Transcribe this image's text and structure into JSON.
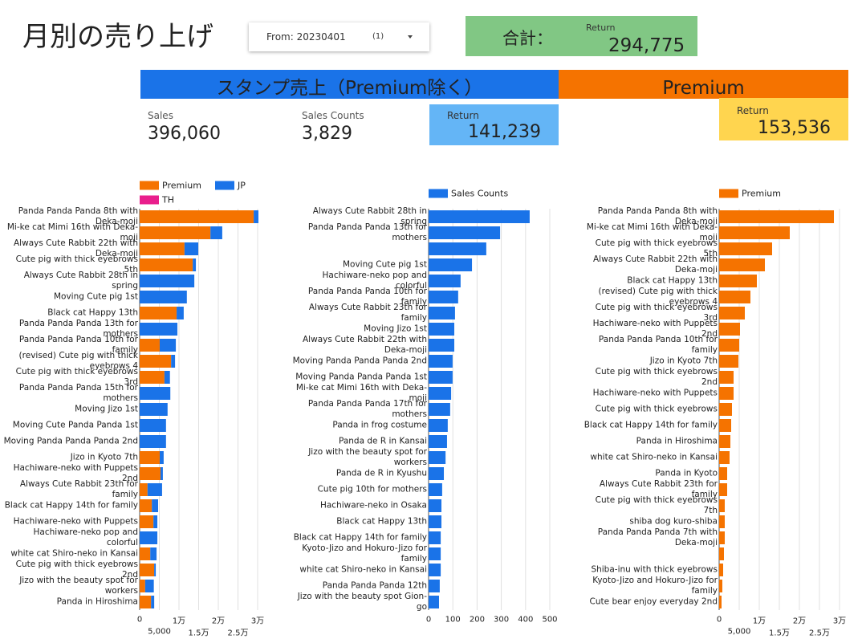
{
  "header": {
    "title": "月別の売り上げ",
    "filter": {
      "label": "From: 20230401",
      "count": "(1)"
    },
    "total": {
      "label": "合計：",
      "sub": "Return",
      "value": "294,775"
    }
  },
  "sections": [
    {
      "title": "スタンプ売上（Premium除く）"
    },
    {
      "title": "Premium"
    }
  ],
  "kpis": [
    {
      "label": "Sales",
      "value": "396,060"
    },
    {
      "label": "Sales Counts",
      "value": "3,829"
    },
    {
      "label": "Return",
      "value": "141,239"
    }
  ],
  "premium_kpi": {
    "label": "Return",
    "value": "153,536"
  },
  "chart_data": [
    {
      "type": "bar",
      "stacked": true,
      "grid": true,
      "categories": [
        "Panda Panda Panda 8th with Deka-moji",
        "Mi-ke cat Mimi 16th with Deka-moji",
        "Always Cute Rabbit 22th with Deka-moji",
        "Cute pig with thick eyebrows 5th",
        "Always Cute Rabbit 28th in spring",
        "Moving Cute pig 1st",
        "Black cat Happy 13th",
        "Panda Panda Panda 13th for mothers",
        "Panda Panda Panda 10th for family",
        "(revised) Cute pig with thick eyebrows 4",
        "Cute pig with thick eyebrows 3rd",
        "Panda Panda Panda 15th for mothers",
        "Moving Jizo 1st",
        "Moving Cute Panda Panda 1st",
        "Moving Panda Panda Panda 2nd",
        "Jizo in Kyoto 7th",
        "Hachiware-neko with Puppets 2nd",
        "Always Cute Rabbit 23th for family",
        "Black cat Happy 14th for family",
        "Hachiware-neko with Puppets",
        "Hachiware-neko pop and colorful",
        "white cat Shiro-neko in Kansai",
        "Cute pig with thick eyebrows 2nd",
        "Jizo with the beauty spot for workers",
        "Panda in Hiroshima"
      ],
      "series": [
        {
          "name": "Premium",
          "color": "#f57300",
          "values": [
            29000,
            18000,
            11400,
            13500,
            0,
            0,
            9400,
            0,
            5100,
            8000,
            6300,
            0,
            0,
            0,
            0,
            5100,
            5300,
            2000,
            3100,
            3500,
            0,
            2700,
            3700,
            1400,
            2900
          ]
        },
        {
          "name": "JP",
          "color": "#1a73e8",
          "values": [
            1200,
            3000,
            3500,
            800,
            13900,
            12000,
            1800,
            9600,
            4100,
            1000,
            1400,
            7800,
            7100,
            6700,
            6700,
            1000,
            600,
            3700,
            1600,
            1000,
            4500,
            1600,
            400,
            2200,
            800
          ]
        },
        {
          "name": "TH",
          "color": "#e91e8c",
          "values": [
            0,
            0,
            0,
            0,
            0,
            0,
            0,
            0,
            0,
            0,
            0,
            0,
            0,
            0,
            0,
            0,
            0,
            0,
            0,
            0,
            0,
            0,
            0,
            0,
            0
          ]
        }
      ],
      "xlim": [
        0,
        30000
      ],
      "xticks": [
        0,
        {
          "value": 5000,
          "label": "5,000"
        },
        {
          "value": 10000,
          "label": "1万"
        },
        {
          "value": 15000,
          "label": "1.5万"
        },
        {
          "value": 20000,
          "label": "2万"
        },
        {
          "value": 25000,
          "label": "2.5万"
        },
        {
          "value": 30000,
          "label": "3万"
        }
      ]
    },
    {
      "type": "bar",
      "grid": true,
      "categories": [
        "Always Cute Rabbit 28th in spring",
        "Panda Panda Panda 13th for mothers",
        null,
        "Moving Cute pig 1st",
        "Hachiware-neko pop and colorful",
        "Panda Panda Panda 10th for family",
        "Always Cute Rabbit 23th for family",
        "Moving Jizo 1st",
        "Always Cute Rabbit 22th with Deka-moji",
        "Moving Panda Panda Panda 2nd",
        "Moving Panda Panda Panda 1st",
        "Mi-ke cat Mimi 16th with Deka-moji",
        "Panda Panda Panda 17th for mothers",
        "Panda in frog costume",
        "Panda de R in Kansai",
        "Jizo with the beauty spot for workers",
        "Panda de R in Kyushu",
        "Cute pig 10th for mothers",
        "Hachiware-neko in Osaka",
        "Black cat Happy 13th",
        "Black cat Happy 14th for family",
        "Kyoto-Jizo and Hokuro-Jizo for family",
        "white cat Shiro-neko in Kansai",
        "Panda Panda Panda 12th",
        "Jizo with the beauty spot Gion-go"
      ],
      "series": [
        {
          "name": "Sales Counts",
          "color": "#1a73e8",
          "values": [
            417,
            295,
            238,
            179,
            132,
            122,
            109,
            106,
            106,
            99,
            99,
            93,
            89,
            79,
            76,
            70,
            63,
            56,
            53,
            53,
            50,
            50,
            50,
            46,
            43
          ]
        }
      ],
      "xlim": [
        0,
        500
      ],
      "xticks": [
        0,
        100,
        200,
        300,
        400,
        500
      ]
    },
    {
      "type": "bar",
      "grid": true,
      "categories": [
        "Panda Panda Panda 8th with Deka-moji",
        "Mi-ke cat Mimi 16th with Deka-moji",
        "Cute pig with thick eyebrows 5th",
        "Always Cute Rabbit 22th with Deka-moji",
        "Black cat Happy 13th",
        "(revised) Cute pig with thick eyebrows 4",
        "Cute pig with thick eyebrows 3rd",
        "Hachiware-neko with Puppets 2nd",
        "Panda Panda Panda 10th for family",
        "Jizo in Kyoto 7th",
        "Cute pig with thick eyebrows 2nd",
        "Hachiware-neko with Puppets",
        "Cute pig with thick eyebrows",
        "Black cat Happy 14th for family",
        "Panda in Hiroshima",
        "white cat Shiro-neko in Kansai",
        "Panda in Kyoto",
        "Always Cute Rabbit 23th for family",
        "Cute pig with thick eyebrows 7th",
        "shiba dog kuro-shiba",
        "Panda Panda Panda 7th with Deka-moji",
        null,
        "Shiba-inu with thick eyebrows",
        "Kyoto-Jizo and Hokuro-Jizo for family",
        "Cute bear enjoy everyday 2nd"
      ],
      "series": [
        {
          "name": "Premium",
          "color": "#f57300",
          "values": [
            28600,
            17600,
            13200,
            11400,
            9400,
            7800,
            6400,
            5200,
            5000,
            4800,
            3600,
            3600,
            3200,
            3000,
            2800,
            2600,
            2000,
            2000,
            1400,
            1400,
            1400,
            1200,
            1000,
            800,
            600
          ]
        }
      ],
      "xlim": [
        0,
        30000
      ],
      "xticks": [
        0,
        {
          "value": 5000,
          "label": "5,000"
        },
        {
          "value": 10000,
          "label": "1万"
        },
        {
          "value": 15000,
          "label": "1.5万"
        },
        {
          "value": 20000,
          "label": "2万"
        },
        {
          "value": 25000,
          "label": "2.5万"
        },
        {
          "value": 30000,
          "label": "3万"
        }
      ]
    }
  ]
}
